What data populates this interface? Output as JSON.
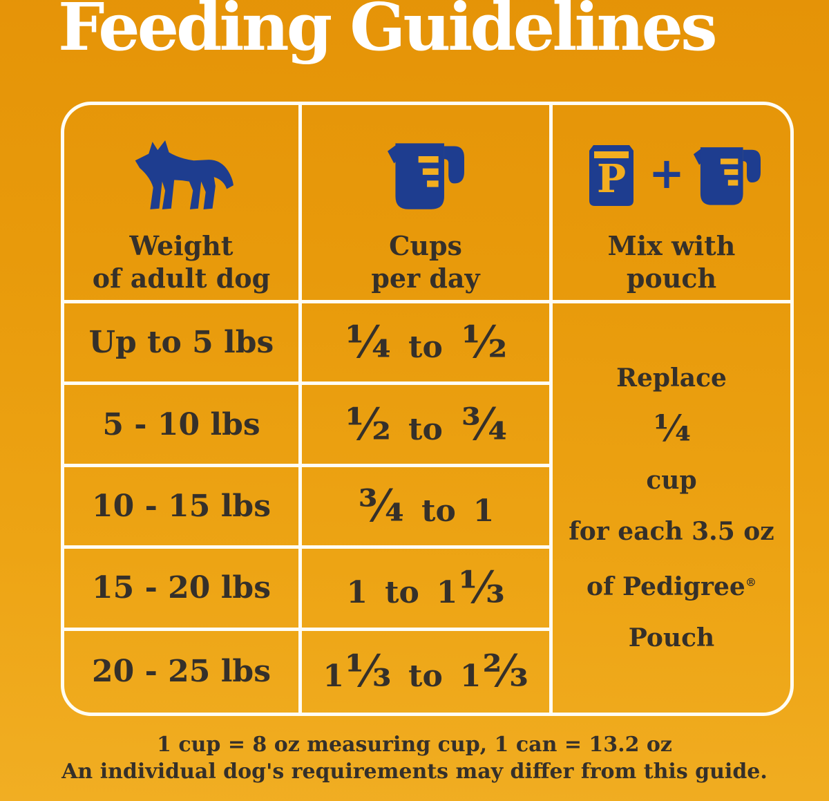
{
  "title": "Feeding Guidelines",
  "colors": {
    "background_top": "#e59307",
    "background_bottom": "#f1ae23",
    "brand_blue": "#1e3d8f",
    "accent_yellow": "#f3ae1f",
    "border_white": "#fffdf4",
    "text_dark": "#35302a"
  },
  "table": {
    "headers": [
      {
        "icon": "dog-icon",
        "line1": "Weight",
        "line2": "of adult dog"
      },
      {
        "icon": "measuring-cup-icon",
        "line1": "Cups",
        "line2": "per day"
      },
      {
        "icon": "pouch-plus-cup-icon",
        "line1": "Mix with",
        "line2": "pouch"
      }
    ],
    "pouch_letter": "P",
    "plus": "+",
    "rows": [
      {
        "weight": "Up to 5 lbs",
        "cups": "¼ to ½"
      },
      {
        "weight": "5 - 10 lbs",
        "cups": "½ to ¾"
      },
      {
        "weight": "10 - 15 lbs",
        "cups": "¾ to 1"
      },
      {
        "weight": "15 - 20 lbs",
        "cups": "1 to 1⅓"
      },
      {
        "weight": "20 - 25 lbs",
        "cups": "1⅓ to 1⅔"
      }
    ],
    "pouch_note": {
      "line1": "Replace ¼ cup",
      "line2": "for each 3.5 oz",
      "line3": "of Pedigree",
      "reg": "®",
      "line4": "Pouch"
    }
  },
  "footer": {
    "line1": "1 cup = 8 oz measuring cup, 1 can = 13.2 oz",
    "line2": "An individual dog's requirements may differ from this guide."
  }
}
